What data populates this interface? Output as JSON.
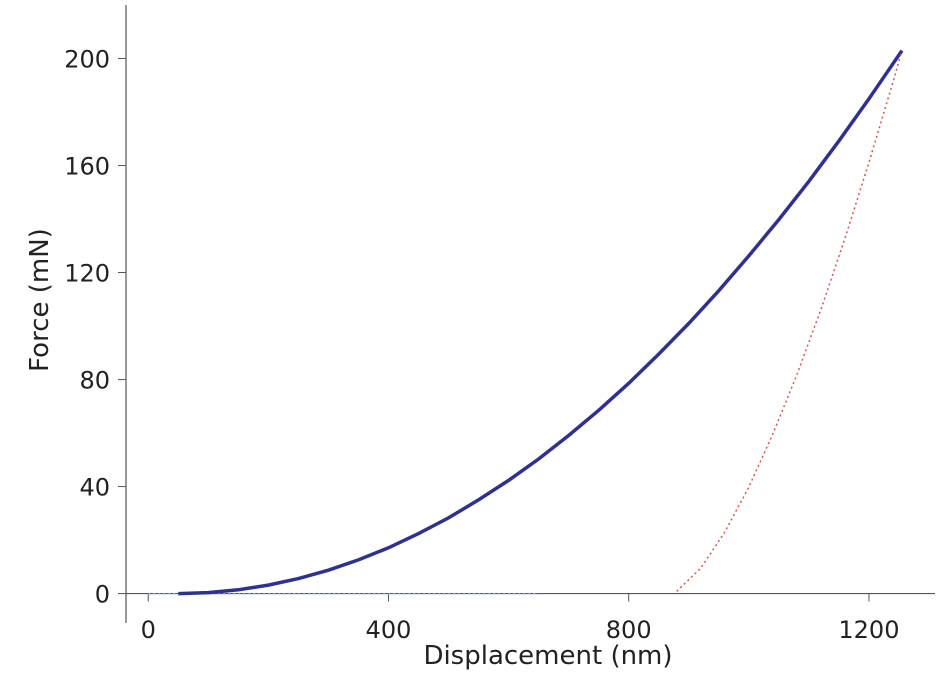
{
  "chart_data": {
    "type": "line",
    "x_label": "Displacement (nm)",
    "y_label": "Force (mN)",
    "xlim": [
      -37,
      1310
    ],
    "ylim": [
      -11,
      220
    ],
    "xticks": [
      0,
      400,
      800,
      1200
    ],
    "yticks": [
      0,
      40,
      80,
      120,
      160,
      200
    ],
    "series": [
      {
        "color": "#7aa6d8",
        "style": "dotted",
        "x": [
          0,
          50,
          100,
          150,
          200,
          250,
          300,
          350,
          400,
          450,
          500,
          550,
          600,
          650
        ],
        "values": [
          0,
          0,
          0,
          0,
          0,
          0,
          0,
          0,
          0,
          0,
          0,
          0,
          0,
          0
        ]
      },
      {
        "color": "#2e3192",
        "style": "solid",
        "x": [
          50,
          100,
          150,
          200,
          250,
          300,
          350,
          400,
          450,
          500,
          550,
          600,
          650,
          700,
          750,
          800,
          850,
          900,
          950,
          1000,
          1050,
          1100,
          1150,
          1200,
          1255
        ],
        "values": [
          0,
          0.35,
          1.4,
          3.15,
          5.59,
          8.74,
          12.58,
          17.1,
          22.4,
          28.3,
          35.0,
          42.3,
          50.3,
          59.1,
          68.5,
          78.6,
          89.5,
          101.0,
          113.2,
          126.2,
          139.8,
          154.1,
          169.2,
          184.9,
          203
        ]
      },
      {
        "color": "#d9534f",
        "style": "dotted",
        "x": [
          880,
          920,
          960,
          1000,
          1040,
          1080,
          1120,
          1160,
          1200,
          1240,
          1255
        ],
        "values": [
          0.85,
          9.5,
          23.0,
          39.8,
          59.6,
          81.8,
          106.2,
          132.7,
          161.1,
          191.2,
          203
        ]
      }
    ]
  }
}
